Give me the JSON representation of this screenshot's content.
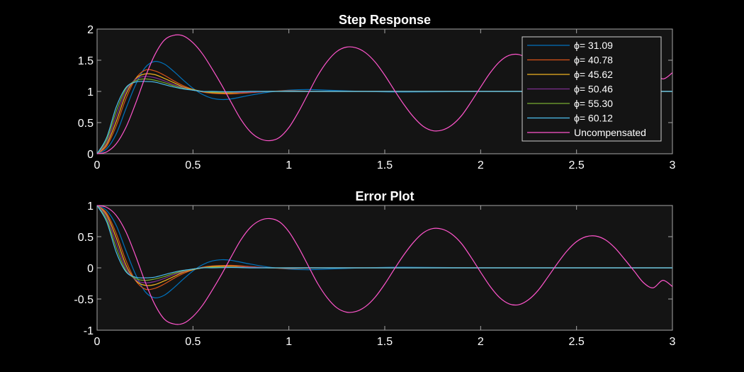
{
  "colors": {
    "background": "#000000",
    "axes_face": "#141414",
    "axes_edge": "#a6a6a6",
    "text": "#ffffff",
    "palette": [
      "#0072BD",
      "#D95319",
      "#EDB120",
      "#7E2F8E",
      "#77AC30",
      "#4DBEEE",
      "#FF55CC"
    ]
  },
  "chart_data": [
    {
      "type": "line",
      "title": "Step Response",
      "xlabel": "",
      "ylabel": "",
      "xlim": [
        0,
        3
      ],
      "ylim": [
        0,
        2
      ],
      "xticks": [
        0,
        0.5,
        1,
        1.5,
        2,
        2.5,
        3
      ],
      "xtick_labels": [
        "0",
        "0.5",
        "1",
        "1.5",
        "2",
        "2.5",
        "3"
      ],
      "yticks": [
        0,
        0.5,
        1,
        1.5,
        2
      ],
      "ytick_labels": [
        "0",
        "0.5",
        "1",
        "1.5",
        "2"
      ],
      "grid": false,
      "legend_position": "top-right",
      "series": [
        {
          "name": "ϕ=  31.09",
          "color": "#0072BD",
          "x": [
            0,
            0.05,
            0.1,
            0.15,
            0.2,
            0.25,
            0.3,
            0.35,
            0.4,
            0.45,
            0.5,
            0.55,
            0.6,
            0.65,
            0.7,
            0.8,
            0.9,
            1.0,
            1.1,
            1.2,
            1.4,
            1.6,
            2.0,
            2.5,
            3.0
          ],
          "y": [
            0,
            0.08,
            0.32,
            0.72,
            1.1,
            1.38,
            1.48,
            1.44,
            1.32,
            1.18,
            1.05,
            0.95,
            0.89,
            0.87,
            0.88,
            0.94,
            0.99,
            1.02,
            1.03,
            1.02,
            1.0,
            0.99,
            1.0,
            1.0,
            1.0
          ]
        },
        {
          "name": "ϕ=  40.78",
          "color": "#D95319",
          "x": [
            0,
            0.05,
            0.1,
            0.15,
            0.2,
            0.25,
            0.3,
            0.35,
            0.4,
            0.45,
            0.5,
            0.55,
            0.6,
            0.7,
            0.8,
            0.9,
            1.0,
            1.2,
            1.5,
            2.0,
            2.5,
            3.0
          ],
          "y": [
            0,
            0.12,
            0.45,
            0.88,
            1.2,
            1.34,
            1.33,
            1.26,
            1.17,
            1.09,
            1.03,
            0.99,
            0.97,
            0.96,
            0.98,
            1.0,
            1.01,
            1.0,
            1.0,
            1.0,
            1.0,
            1.0
          ]
        },
        {
          "name": "ϕ=  45.62",
          "color": "#EDB120",
          "x": [
            0,
            0.05,
            0.1,
            0.15,
            0.2,
            0.25,
            0.3,
            0.35,
            0.4,
            0.45,
            0.5,
            0.55,
            0.6,
            0.7,
            0.8,
            0.9,
            1.0,
            1.2,
            1.5,
            2.0,
            2.5,
            3.0
          ],
          "y": [
            0,
            0.15,
            0.52,
            0.95,
            1.2,
            1.28,
            1.27,
            1.21,
            1.14,
            1.07,
            1.03,
            1.0,
            0.98,
            0.975,
            0.99,
            1.0,
            1.0,
            1.0,
            1.0,
            1.0,
            1.0,
            1.0
          ]
        },
        {
          "name": "ϕ=  50.46",
          "color": "#7E2F8E",
          "x": [
            0,
            0.05,
            0.1,
            0.15,
            0.2,
            0.25,
            0.3,
            0.35,
            0.4,
            0.45,
            0.5,
            0.55,
            0.6,
            0.7,
            0.8,
            0.9,
            1.0,
            1.2,
            1.5,
            2.0,
            2.5,
            3.0
          ],
          "y": [
            0,
            0.18,
            0.6,
            1.0,
            1.19,
            1.24,
            1.22,
            1.17,
            1.11,
            1.06,
            1.02,
            1.0,
            0.99,
            0.985,
            0.99,
            1.0,
            1.0,
            1.0,
            1.0,
            1.0,
            1.0,
            1.0
          ]
        },
        {
          "name": "ϕ=  55.30",
          "color": "#77AC30",
          "x": [
            0,
            0.05,
            0.1,
            0.15,
            0.2,
            0.25,
            0.3,
            0.35,
            0.4,
            0.45,
            0.5,
            0.55,
            0.6,
            0.7,
            0.8,
            0.9,
            1.0,
            1.2,
            1.5,
            2.0,
            2.5,
            3.0
          ],
          "y": [
            0,
            0.22,
            0.68,
            1.04,
            1.17,
            1.2,
            1.18,
            1.14,
            1.09,
            1.05,
            1.02,
            1.0,
            0.99,
            0.99,
            1.0,
            1.0,
            1.0,
            1.0,
            1.0,
            1.0,
            1.0,
            1.0
          ]
        },
        {
          "name": "ϕ=  60.12",
          "color": "#4DBEEE",
          "x": [
            0,
            0.05,
            0.1,
            0.15,
            0.2,
            0.25,
            0.3,
            0.35,
            0.4,
            0.45,
            0.5,
            0.55,
            0.6,
            0.7,
            0.8,
            0.9,
            1.0,
            1.2,
            1.5,
            2.0,
            2.5,
            3.0
          ],
          "y": [
            0,
            0.26,
            0.75,
            1.06,
            1.15,
            1.16,
            1.15,
            1.11,
            1.07,
            1.04,
            1.02,
            1.0,
            1.0,
            0.995,
            1.0,
            1.0,
            1.0,
            1.0,
            1.0,
            1.0,
            1.0,
            1.0
          ]
        },
        {
          "name": "Uncompensated",
          "color": "#FF55CC",
          "x": [
            0,
            0.05,
            0.1,
            0.15,
            0.2,
            0.25,
            0.3,
            0.35,
            0.4,
            0.45,
            0.5,
            0.55,
            0.6,
            0.65,
            0.7,
            0.75,
            0.8,
            0.85,
            0.9,
            0.95,
            1.0,
            1.05,
            1.1,
            1.15,
            1.2,
            1.25,
            1.3,
            1.35,
            1.4,
            1.45,
            1.5,
            1.55,
            1.6,
            1.65,
            1.7,
            1.75,
            1.8,
            1.85,
            1.9,
            1.95,
            2.0,
            2.05,
            2.1,
            2.15,
            2.2,
            2.25,
            2.3,
            2.35,
            2.4,
            2.45,
            2.5,
            2.55,
            2.6,
            2.65,
            2.7,
            2.75,
            2.8,
            2.85,
            2.9,
            2.95,
            3.0
          ],
          "y": [
            0,
            0.03,
            0.16,
            0.42,
            0.8,
            1.22,
            1.58,
            1.82,
            1.9,
            1.89,
            1.78,
            1.6,
            1.36,
            1.1,
            0.82,
            0.55,
            0.35,
            0.24,
            0.21,
            0.26,
            0.42,
            0.67,
            0.96,
            1.25,
            1.48,
            1.64,
            1.71,
            1.7,
            1.62,
            1.47,
            1.26,
            1.02,
            0.79,
            0.59,
            0.44,
            0.37,
            0.38,
            0.46,
            0.61,
            0.83,
            1.07,
            1.3,
            1.48,
            1.58,
            1.59,
            1.51,
            1.36,
            1.15,
            0.93,
            0.73,
            0.58,
            0.5,
            0.49,
            0.55,
            0.68,
            0.86,
            1.05,
            1.24,
            1.32,
            1.2,
            1.3
          ]
        }
      ]
    },
    {
      "type": "line",
      "title": "Error Plot",
      "xlabel": "",
      "ylabel": "",
      "xlim": [
        0,
        3
      ],
      "ylim": [
        -1,
        1
      ],
      "xticks": [
        0,
        0.5,
        1,
        1.5,
        2,
        2.5,
        3
      ],
      "xtick_labels": [
        "0",
        "0.5",
        "1",
        "1.5",
        "2",
        "2.5",
        "3"
      ],
      "yticks": [
        -1,
        -0.5,
        0,
        0.5,
        1
      ],
      "ytick_labels": [
        "-1",
        "-0.5",
        "0",
        "0.5",
        "1"
      ],
      "grid": false,
      "series": [
        {
          "color": "#0072BD",
          "x": [
            0,
            0.05,
            0.1,
            0.15,
            0.2,
            0.25,
            0.3,
            0.35,
            0.4,
            0.45,
            0.5,
            0.55,
            0.6,
            0.65,
            0.7,
            0.8,
            0.9,
            1.0,
            1.1,
            1.2,
            1.4,
            1.6,
            2.0,
            2.5,
            3.0
          ],
          "y": [
            1,
            0.92,
            0.68,
            0.28,
            -0.1,
            -0.38,
            -0.48,
            -0.44,
            -0.32,
            -0.18,
            -0.05,
            0.05,
            0.11,
            0.13,
            0.12,
            0.06,
            0.01,
            -0.02,
            -0.03,
            -0.02,
            0.0,
            0.01,
            0.0,
            0.0,
            0.0
          ]
        },
        {
          "color": "#D95319",
          "x": [
            0,
            0.05,
            0.1,
            0.15,
            0.2,
            0.25,
            0.3,
            0.35,
            0.4,
            0.45,
            0.5,
            0.55,
            0.6,
            0.7,
            0.8,
            0.9,
            1.0,
            1.2,
            1.5,
            2.0,
            2.5,
            3.0
          ],
          "y": [
            1,
            0.88,
            0.55,
            0.12,
            -0.2,
            -0.34,
            -0.33,
            -0.26,
            -0.17,
            -0.09,
            -0.03,
            0.01,
            0.03,
            0.04,
            0.02,
            0.0,
            -0.01,
            0.0,
            0.0,
            0.0,
            0.0,
            0.0
          ]
        },
        {
          "color": "#EDB120",
          "x": [
            0,
            0.05,
            0.1,
            0.15,
            0.2,
            0.25,
            0.3,
            0.35,
            0.4,
            0.45,
            0.5,
            0.55,
            0.6,
            0.7,
            0.8,
            0.9,
            1.0,
            1.2,
            1.5,
            2.0,
            2.5,
            3.0
          ],
          "y": [
            1,
            0.85,
            0.48,
            0.05,
            -0.2,
            -0.28,
            -0.27,
            -0.21,
            -0.14,
            -0.07,
            -0.03,
            0.0,
            0.02,
            0.025,
            0.01,
            0.0,
            0.0,
            0.0,
            0.0,
            0.0,
            0.0,
            0.0
          ]
        },
        {
          "color": "#7E2F8E",
          "x": [
            0,
            0.05,
            0.1,
            0.15,
            0.2,
            0.25,
            0.3,
            0.35,
            0.4,
            0.45,
            0.5,
            0.55,
            0.6,
            0.7,
            0.8,
            0.9,
            1.0,
            1.2,
            1.5,
            2.0,
            2.5,
            3.0
          ],
          "y": [
            1,
            0.82,
            0.4,
            0.0,
            -0.19,
            -0.24,
            -0.22,
            -0.17,
            -0.11,
            -0.06,
            -0.02,
            0.0,
            0.01,
            0.015,
            0.01,
            0.0,
            0.0,
            0.0,
            0.0,
            0.0,
            0.0,
            0.0
          ]
        },
        {
          "color": "#77AC30",
          "x": [
            0,
            0.05,
            0.1,
            0.15,
            0.2,
            0.25,
            0.3,
            0.35,
            0.4,
            0.45,
            0.5,
            0.55,
            0.6,
            0.7,
            0.8,
            0.9,
            1.0,
            1.2,
            1.5,
            2.0,
            2.5,
            3.0
          ],
          "y": [
            1,
            0.78,
            0.32,
            -0.04,
            -0.17,
            -0.2,
            -0.18,
            -0.14,
            -0.09,
            -0.05,
            -0.02,
            0.0,
            0.01,
            0.01,
            0.0,
            0.0,
            0.0,
            0.0,
            0.0,
            0.0,
            0.0,
            0.0
          ]
        },
        {
          "color": "#4DBEEE",
          "x": [
            0,
            0.05,
            0.1,
            0.15,
            0.2,
            0.25,
            0.3,
            0.35,
            0.4,
            0.45,
            0.5,
            0.55,
            0.6,
            0.7,
            0.8,
            0.9,
            1.0,
            1.2,
            1.5,
            2.0,
            2.5,
            3.0
          ],
          "y": [
            1,
            0.74,
            0.25,
            -0.06,
            -0.15,
            -0.16,
            -0.15,
            -0.11,
            -0.07,
            -0.04,
            -0.02,
            0.0,
            0.0,
            0.005,
            0.0,
            0.0,
            0.0,
            0.0,
            0.0,
            0.0,
            0.0,
            0.0
          ]
        },
        {
          "color": "#FF55CC",
          "x": [
            0,
            0.05,
            0.1,
            0.15,
            0.2,
            0.25,
            0.3,
            0.35,
            0.4,
            0.45,
            0.5,
            0.55,
            0.6,
            0.65,
            0.7,
            0.75,
            0.8,
            0.85,
            0.9,
            0.95,
            1.0,
            1.05,
            1.1,
            1.15,
            1.2,
            1.25,
            1.3,
            1.35,
            1.4,
            1.45,
            1.5,
            1.55,
            1.6,
            1.65,
            1.7,
            1.75,
            1.8,
            1.85,
            1.9,
            1.95,
            2.0,
            2.05,
            2.1,
            2.15,
            2.2,
            2.25,
            2.3,
            2.35,
            2.4,
            2.45,
            2.5,
            2.55,
            2.6,
            2.65,
            2.7,
            2.75,
            2.8,
            2.85,
            2.9,
            2.95,
            3.0
          ],
          "y": [
            1,
            0.97,
            0.84,
            0.58,
            0.2,
            -0.22,
            -0.58,
            -0.82,
            -0.9,
            -0.89,
            -0.78,
            -0.6,
            -0.36,
            -0.1,
            0.18,
            0.45,
            0.65,
            0.76,
            0.79,
            0.74,
            0.58,
            0.33,
            0.04,
            -0.25,
            -0.48,
            -0.64,
            -0.71,
            -0.7,
            -0.62,
            -0.47,
            -0.26,
            -0.02,
            0.21,
            0.41,
            0.56,
            0.63,
            0.62,
            0.54,
            0.39,
            0.17,
            -0.07,
            -0.3,
            -0.48,
            -0.58,
            -0.59,
            -0.51,
            -0.36,
            -0.15,
            0.07,
            0.27,
            0.42,
            0.5,
            0.51,
            0.45,
            0.32,
            0.14,
            -0.05,
            -0.24,
            -0.32,
            -0.2,
            -0.3
          ]
        }
      ]
    }
  ]
}
